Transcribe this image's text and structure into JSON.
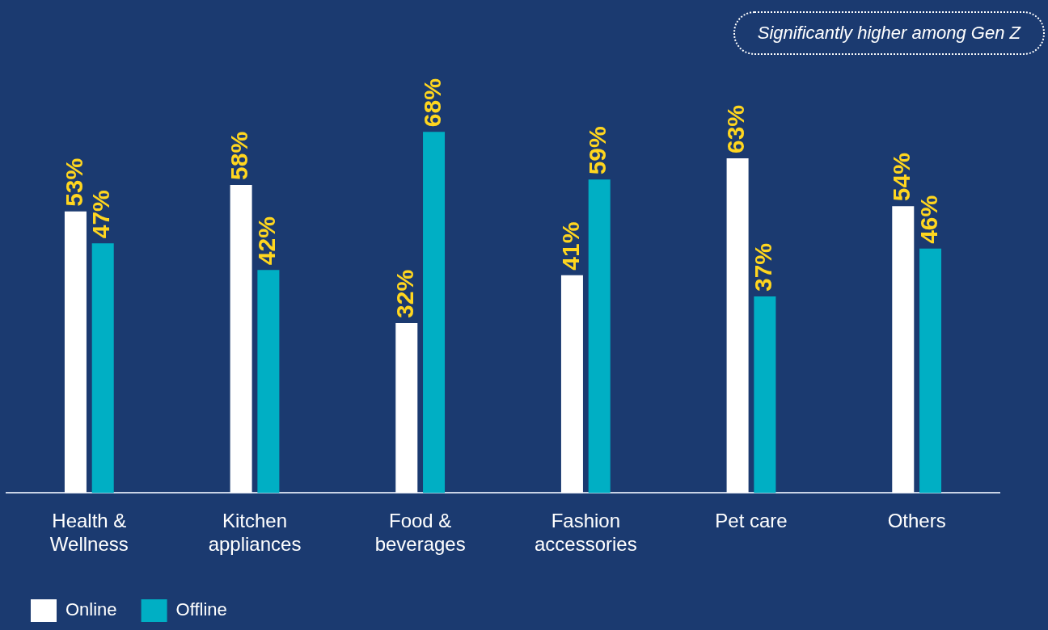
{
  "chart_data": {
    "type": "bar",
    "categories": [
      "Health & Wellness",
      "Kitchen appliances",
      "Food & beverages",
      "Fashion accessories",
      "Pet care",
      "Others"
    ],
    "series": [
      {
        "name": "Online",
        "color": "#ffffff",
        "values": [
          53,
          58,
          32,
          41,
          63,
          54
        ],
        "value_labels": [
          "53%",
          "58%",
          "32%",
          "41%",
          "63%",
          "54%"
        ]
      },
      {
        "name": "Offline",
        "color": "#00afc4",
        "values": [
          47,
          42,
          68,
          59,
          37,
          46
        ],
        "value_labels": [
          "47%",
          "42%",
          "68%",
          "59%",
          "37%",
          "46%"
        ]
      }
    ],
    "legend": "bottom left",
    "tick_labels": "x",
    "annotations": [
      "Significantly higher among Gen Z"
    ]
  }
}
